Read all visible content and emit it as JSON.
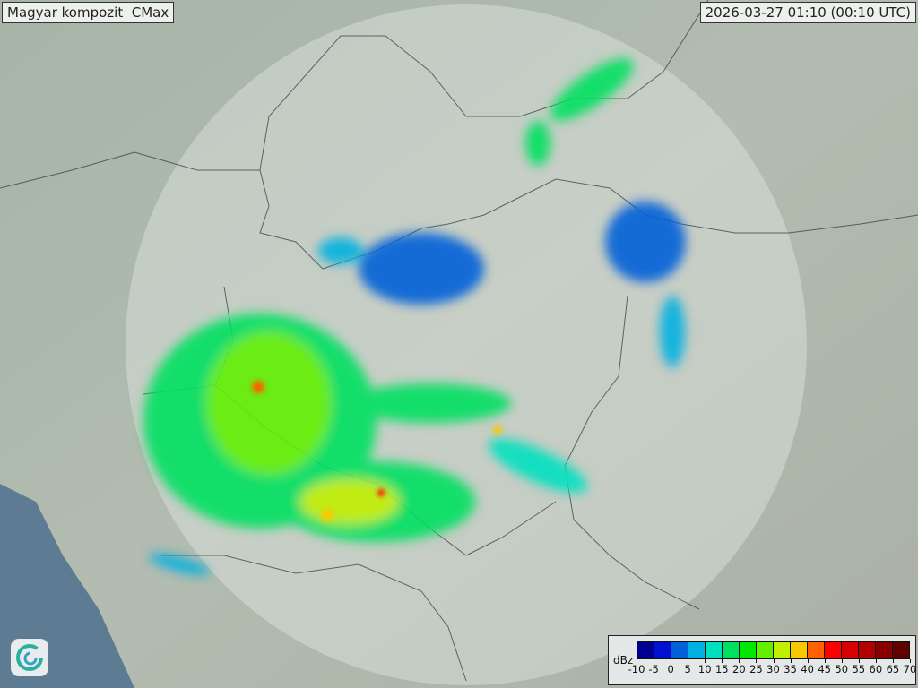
{
  "title": "Magyar kompozit  CMax",
  "timestamp": "2026-03-27 01:10 (00:10 UTC)",
  "legend": {
    "unit": "dBz",
    "ticks": [
      "-10",
      "-5",
      "0",
      "5",
      "10",
      "15",
      "20",
      "25",
      "30",
      "35",
      "40",
      "45",
      "50",
      "55",
      "60",
      "65",
      "70"
    ],
    "colors": [
      "#000090",
      "#0010d0",
      "#0060d8",
      "#00b0e0",
      "#00e0c0",
      "#00e060",
      "#00e800",
      "#60f000",
      "#c0f000",
      "#f8c800",
      "#ff6000",
      "#ff0000",
      "#d80000",
      "#b00000",
      "#880000",
      "#600000"
    ]
  },
  "logo": {
    "icon": "swirl-logo-icon"
  }
}
